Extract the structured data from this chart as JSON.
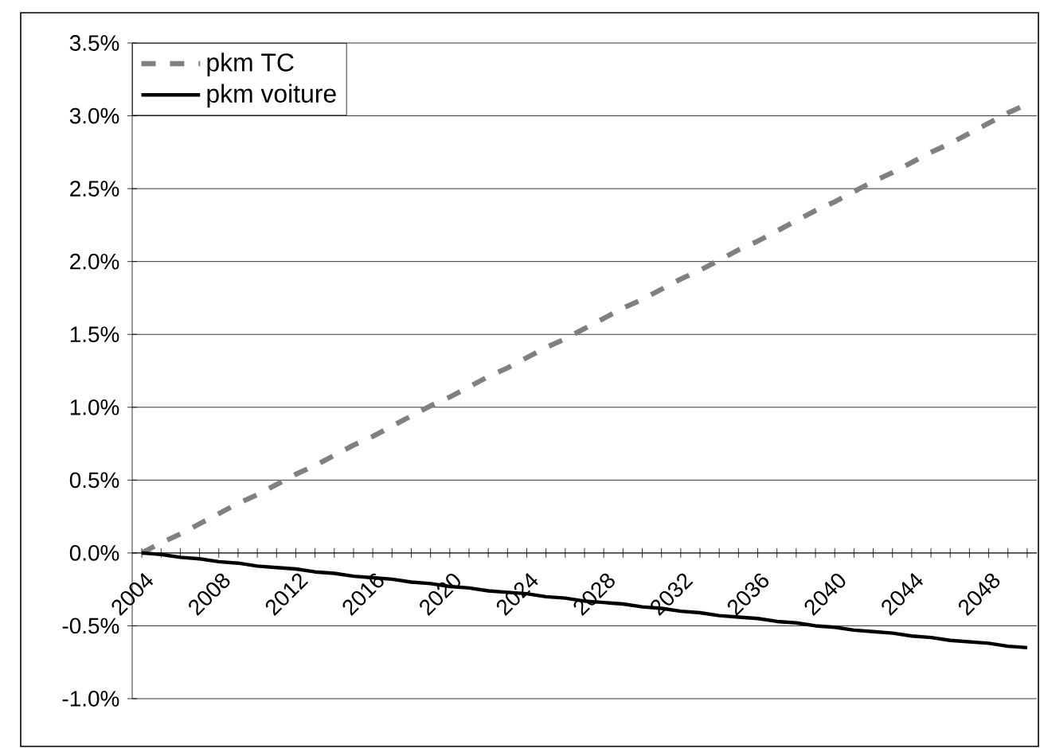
{
  "chart_data": {
    "type": "line",
    "categories": [
      "2004",
      null,
      null,
      null,
      "2008",
      null,
      null,
      null,
      "2012",
      null,
      null,
      null,
      "2016",
      null,
      null,
      null,
      "2020",
      null,
      null,
      null,
      "2024",
      null,
      null,
      null,
      "2028",
      null,
      null,
      null,
      "2032",
      null,
      null,
      null,
      "2036",
      null,
      null,
      null,
      "2040",
      null,
      null,
      null,
      "2044",
      null,
      null,
      null,
      "2048",
      null,
      null
    ],
    "series": [
      {
        "name": "pkm TC",
        "color": "#808080",
        "line_style": "dashed",
        "values": [
          0,
          0.07,
          0.13,
          0.2,
          0.27,
          0.34,
          0.4,
          0.47,
          0.54,
          0.6,
          0.67,
          0.74,
          0.8,
          0.87,
          0.94,
          1.01,
          1.07,
          1.14,
          1.21,
          1.27,
          1.34,
          1.41,
          1.47,
          1.54,
          1.61,
          1.68,
          1.74,
          1.81,
          1.88,
          1.94,
          2.01,
          2.08,
          2.14,
          2.21,
          2.28,
          2.35,
          2.41,
          2.48,
          2.55,
          2.61,
          2.68,
          2.75,
          2.81,
          2.88,
          2.95,
          3.02,
          3.08
        ]
      },
      {
        "name": "pkm voiture",
        "color": "#000000",
        "line_style": "solid",
        "values": [
          0,
          -0.01,
          -0.03,
          -0.04,
          -0.06,
          -0.07,
          -0.09,
          -0.1,
          -0.11,
          -0.13,
          -0.14,
          -0.16,
          -0.17,
          -0.18,
          -0.2,
          -0.21,
          -0.23,
          -0.24,
          -0.26,
          -0.27,
          -0.28,
          -0.3,
          -0.31,
          -0.33,
          -0.34,
          -0.35,
          -0.37,
          -0.38,
          -0.4,
          -0.41,
          -0.43,
          -0.44,
          -0.45,
          -0.47,
          -0.48,
          -0.5,
          -0.51,
          -0.53,
          -0.54,
          -0.55,
          -0.57,
          -0.58,
          -0.6,
          -0.61,
          -0.62,
          -0.64,
          -0.65
        ]
      }
    ],
    "ylim": [
      -1.0,
      3.5
    ],
    "yticks": [
      {
        "value": -1.0,
        "label": "-1.0%"
      },
      {
        "value": -0.5,
        "label": "-0.5%"
      },
      {
        "value": 0.0,
        "label": "0.0%"
      },
      {
        "value": 0.5,
        "label": "0.5%"
      },
      {
        "value": 1.0,
        "label": "1.0%"
      },
      {
        "value": 1.5,
        "label": "1.5%"
      },
      {
        "value": 2.0,
        "label": "2.0%"
      },
      {
        "value": 2.5,
        "label": "2.5%"
      },
      {
        "value": 3.0,
        "label": "3.0%"
      },
      {
        "value": 3.5,
        "label": "3.5%"
      }
    ],
    "grid": "y",
    "legend": "top left",
    "marker": "none"
  }
}
